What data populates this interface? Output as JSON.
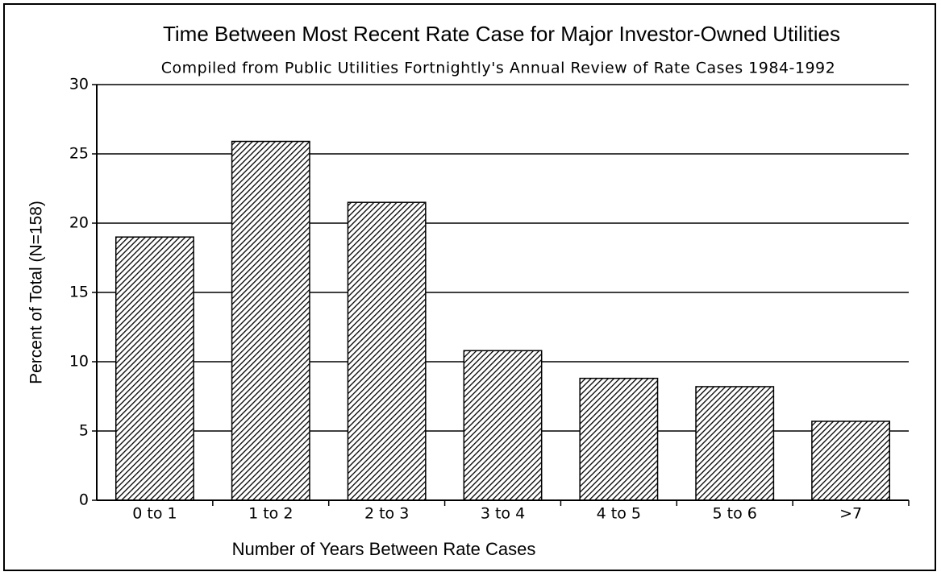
{
  "chart_data": {
    "type": "bar",
    "title": "Time Between Most Recent Rate Case for Major Investor-Owned Utilities",
    "subtitle": "Compiled from Public Utilities Fortnightly's Annual Review of Rate Cases 1984-1992",
    "x_label": "Number of Years Between Rate Cases",
    "y_label": "Percent of Total (N=158)",
    "categories": [
      "0 to 1",
      "1 to 2",
      "2 to 3",
      "3 to 4",
      "4 to 5",
      "5 to 6",
      ">7"
    ],
    "values": [
      19,
      25.9,
      21.5,
      10.8,
      8.8,
      8.2,
      5.7
    ],
    "color": "#000000",
    "ylim": [
      0,
      30
    ],
    "yticks": [
      0,
      5,
      10,
      15,
      20,
      25,
      30
    ],
    "grid": true
  }
}
